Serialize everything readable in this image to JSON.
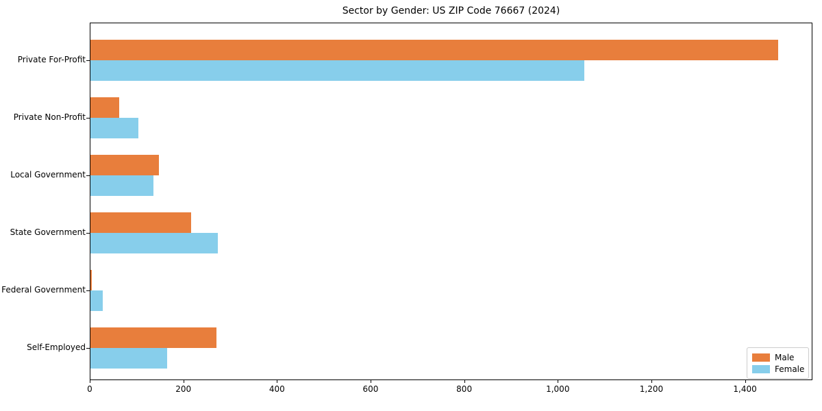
{
  "chart_data": {
    "type": "bar",
    "orientation": "horizontal",
    "title": "Sector by Gender: US ZIP Code 76667 (2024)",
    "categories": [
      "Private For-Profit",
      "Private Non-Profit",
      "Local Government",
      "State Government",
      "Federal Government",
      "Self-Employed"
    ],
    "series": [
      {
        "name": "Male",
        "color": "#e87e3c",
        "values": [
          1470,
          62,
          146,
          215,
          3,
          270
        ]
      },
      {
        "name": "Female",
        "color": "#87ceeb",
        "values": [
          1055,
          103,
          134,
          272,
          26,
          164
        ]
      }
    ],
    "xlabel": "",
    "ylabel": "",
    "xlim": [
      0,
      1544
    ],
    "xticks": [
      0,
      200,
      400,
      600,
      800,
      1000,
      1200,
      1400
    ],
    "xtick_labels": [
      "0",
      "200",
      "400",
      "600",
      "800",
      "1,000",
      "1,200",
      "1,400"
    ],
    "grid": false,
    "legend_position": "lower right",
    "axis_color": "#000000",
    "background_color": "#ffffff"
  }
}
